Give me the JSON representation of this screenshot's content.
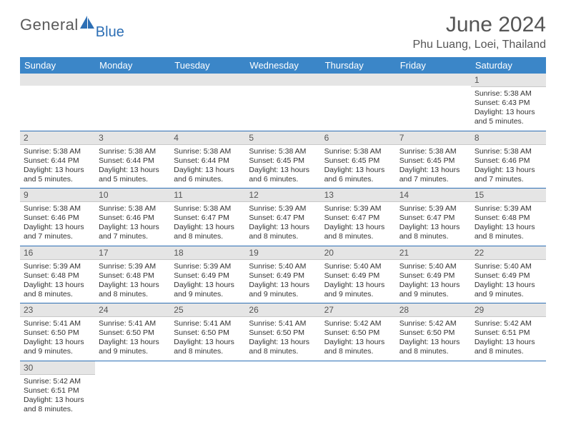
{
  "logo": {
    "textA": "General",
    "textB": "Blue",
    "color_a": "#5a5a5a",
    "color_b": "#2d6fb5"
  },
  "title": "June 2024",
  "location": "Phu Luang, Loei, Thailand",
  "colors": {
    "header_bg": "#3b86c8",
    "header_text": "#ffffff",
    "daynum_bg": "#e5e5e5",
    "row_border": "#2d6fb5",
    "body_text": "#333333"
  },
  "dayLabels": [
    "Sunday",
    "Monday",
    "Tuesday",
    "Wednesday",
    "Thursday",
    "Friday",
    "Saturday"
  ],
  "weeks": [
    [
      null,
      null,
      null,
      null,
      null,
      null,
      {
        "n": "1",
        "sr": "5:38 AM",
        "ss": "6:43 PM",
        "dl": "13 hours and 5 minutes."
      }
    ],
    [
      {
        "n": "2",
        "sr": "5:38 AM",
        "ss": "6:44 PM",
        "dl": "13 hours and 5 minutes."
      },
      {
        "n": "3",
        "sr": "5:38 AM",
        "ss": "6:44 PM",
        "dl": "13 hours and 5 minutes."
      },
      {
        "n": "4",
        "sr": "5:38 AM",
        "ss": "6:44 PM",
        "dl": "13 hours and 6 minutes."
      },
      {
        "n": "5",
        "sr": "5:38 AM",
        "ss": "6:45 PM",
        "dl": "13 hours and 6 minutes."
      },
      {
        "n": "6",
        "sr": "5:38 AM",
        "ss": "6:45 PM",
        "dl": "13 hours and 6 minutes."
      },
      {
        "n": "7",
        "sr": "5:38 AM",
        "ss": "6:45 PM",
        "dl": "13 hours and 7 minutes."
      },
      {
        "n": "8",
        "sr": "5:38 AM",
        "ss": "6:46 PM",
        "dl": "13 hours and 7 minutes."
      }
    ],
    [
      {
        "n": "9",
        "sr": "5:38 AM",
        "ss": "6:46 PM",
        "dl": "13 hours and 7 minutes."
      },
      {
        "n": "10",
        "sr": "5:38 AM",
        "ss": "6:46 PM",
        "dl": "13 hours and 7 minutes."
      },
      {
        "n": "11",
        "sr": "5:38 AM",
        "ss": "6:47 PM",
        "dl": "13 hours and 8 minutes."
      },
      {
        "n": "12",
        "sr": "5:39 AM",
        "ss": "6:47 PM",
        "dl": "13 hours and 8 minutes."
      },
      {
        "n": "13",
        "sr": "5:39 AM",
        "ss": "6:47 PM",
        "dl": "13 hours and 8 minutes."
      },
      {
        "n": "14",
        "sr": "5:39 AM",
        "ss": "6:47 PM",
        "dl": "13 hours and 8 minutes."
      },
      {
        "n": "15",
        "sr": "5:39 AM",
        "ss": "6:48 PM",
        "dl": "13 hours and 8 minutes."
      }
    ],
    [
      {
        "n": "16",
        "sr": "5:39 AM",
        "ss": "6:48 PM",
        "dl": "13 hours and 8 minutes."
      },
      {
        "n": "17",
        "sr": "5:39 AM",
        "ss": "6:48 PM",
        "dl": "13 hours and 8 minutes."
      },
      {
        "n": "18",
        "sr": "5:39 AM",
        "ss": "6:49 PM",
        "dl": "13 hours and 9 minutes."
      },
      {
        "n": "19",
        "sr": "5:40 AM",
        "ss": "6:49 PM",
        "dl": "13 hours and 9 minutes."
      },
      {
        "n": "20",
        "sr": "5:40 AM",
        "ss": "6:49 PM",
        "dl": "13 hours and 9 minutes."
      },
      {
        "n": "21",
        "sr": "5:40 AM",
        "ss": "6:49 PM",
        "dl": "13 hours and 9 minutes."
      },
      {
        "n": "22",
        "sr": "5:40 AM",
        "ss": "6:49 PM",
        "dl": "13 hours and 9 minutes."
      }
    ],
    [
      {
        "n": "23",
        "sr": "5:41 AM",
        "ss": "6:50 PM",
        "dl": "13 hours and 9 minutes."
      },
      {
        "n": "24",
        "sr": "5:41 AM",
        "ss": "6:50 PM",
        "dl": "13 hours and 9 minutes."
      },
      {
        "n": "25",
        "sr": "5:41 AM",
        "ss": "6:50 PM",
        "dl": "13 hours and 8 minutes."
      },
      {
        "n": "26",
        "sr": "5:41 AM",
        "ss": "6:50 PM",
        "dl": "13 hours and 8 minutes."
      },
      {
        "n": "27",
        "sr": "5:42 AM",
        "ss": "6:50 PM",
        "dl": "13 hours and 8 minutes."
      },
      {
        "n": "28",
        "sr": "5:42 AM",
        "ss": "6:50 PM",
        "dl": "13 hours and 8 minutes."
      },
      {
        "n": "29",
        "sr": "5:42 AM",
        "ss": "6:51 PM",
        "dl": "13 hours and 8 minutes."
      }
    ],
    [
      {
        "n": "30",
        "sr": "5:42 AM",
        "ss": "6:51 PM",
        "dl": "13 hours and 8 minutes."
      },
      null,
      null,
      null,
      null,
      null,
      null
    ]
  ],
  "lastRowBorder": false
}
